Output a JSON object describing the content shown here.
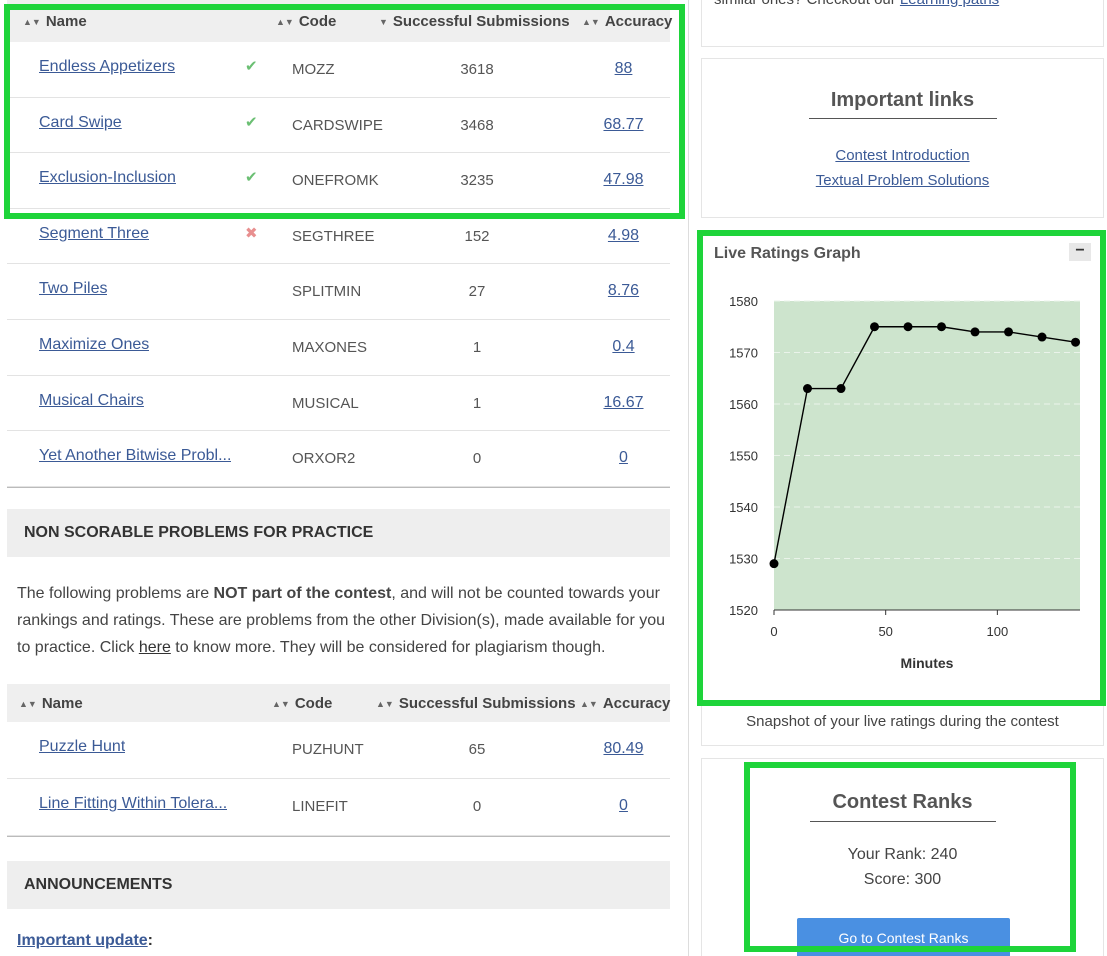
{
  "scorable_table": {
    "headers": {
      "name": "Name",
      "code": "Code",
      "subs": "Successful Submissions",
      "acc": "Accuracy"
    },
    "sort_icons": {
      "name": "sort-both-icon",
      "code": "sort-both-icon",
      "subs": "sort-desc-icon",
      "acc": "sort-both-icon"
    },
    "rows": [
      {
        "name": "Endless Appetizers",
        "status": "✔",
        "status_icon": "check-icon",
        "code": "MOZZ",
        "subs": "3618",
        "acc": "88"
      },
      {
        "name": "Card Swipe",
        "status": "✔",
        "status_icon": "check-icon",
        "code": "CARDSWIPE",
        "subs": "3468",
        "acc": "68.77"
      },
      {
        "name": "Exclusion-Inclusion",
        "status": "✔",
        "status_icon": "check-icon",
        "code": "ONEFROMK",
        "subs": "3235",
        "acc": "47.98"
      },
      {
        "name": "Segment Three",
        "status": "✖",
        "status_icon": "cross-icon",
        "code": "SEGTHREE",
        "subs": "152",
        "acc": "4.98"
      },
      {
        "name": "Two Piles",
        "status": "",
        "status_icon": "",
        "code": "SPLITMIN",
        "subs": "27",
        "acc": "8.76"
      },
      {
        "name": "Maximize Ones",
        "status": "",
        "status_icon": "",
        "code": "MAXONES",
        "subs": "1",
        "acc": "0.4"
      },
      {
        "name": "Musical Chairs",
        "status": "",
        "status_icon": "",
        "code": "MUSICAL",
        "subs": "1",
        "acc": "16.67"
      },
      {
        "name": "Yet Another Bitwise Probl...",
        "status": "",
        "status_icon": "",
        "code": "ORXOR2",
        "subs": "0",
        "acc": "0"
      }
    ]
  },
  "non_scorable": {
    "heading": "NON SCORABLE PROBLEMS FOR PRACTICE",
    "para_pre": "The following problems are ",
    "para_bold": "NOT part of the contest",
    "para_mid": ", and will not be counted towards your rankings and ratings. These are problems from the other Division(s), made available for you to practice. Click ",
    "para_link": "here",
    "para_post": " to know more. They will be considered for plagiarism though.",
    "headers": {
      "name": "Name",
      "code": "Code",
      "subs": "Successful Submissions",
      "acc": "Accuracy"
    },
    "rows": [
      {
        "name": "Puzzle Hunt",
        "code": "PUZHUNT",
        "subs": "65",
        "acc": "80.49"
      },
      {
        "name": "Line Fitting Within Tolera...",
        "code": "LINEFIT",
        "subs": "0",
        "acc": "0"
      }
    ]
  },
  "announcements": {
    "heading": "ANNOUNCEMENTS",
    "update_link": "Important update",
    "update_colon": ":"
  },
  "sidebar": {
    "top_text": "similar ones? Checkout our ",
    "top_link": "Learning paths",
    "important_links": {
      "title": "Important links",
      "links": [
        "Contest Introduction",
        "Textual Problem Solutions"
      ]
    },
    "graph": {
      "title": "Live Ratings Graph",
      "collapse": "−",
      "caption": "Snapshot of your live ratings during the contest"
    },
    "ranks": {
      "title": "Contest Ranks",
      "rank_text": "Your Rank: 240",
      "score_text": "Score: 300",
      "button": "Go to Contest Ranks"
    }
  },
  "chart_data": {
    "type": "line",
    "title": "Live Ratings Graph",
    "xlabel": "Minutes",
    "ylabel": "",
    "x": [
      0,
      15,
      30,
      45,
      60,
      75,
      90,
      105,
      120,
      135
    ],
    "series": [
      {
        "values": [
          1529,
          1563,
          1563,
          1575,
          1575,
          1575,
          1574,
          1574,
          1573,
          1572
        ]
      }
    ],
    "xlim": [
      0,
      137
    ],
    "ylim": [
      1520,
      1580
    ],
    "xticks": [
      0,
      50,
      100
    ],
    "yticks": [
      1520,
      1530,
      1540,
      1550,
      1560,
      1570,
      1580
    ],
    "grid": true,
    "legend": "none",
    "plot_bg": "#cde4cd",
    "line_color": "#000000"
  },
  "colors": {
    "highlight": "#1ed43a",
    "link": "#3b5a96",
    "button": "#4a90e2"
  }
}
